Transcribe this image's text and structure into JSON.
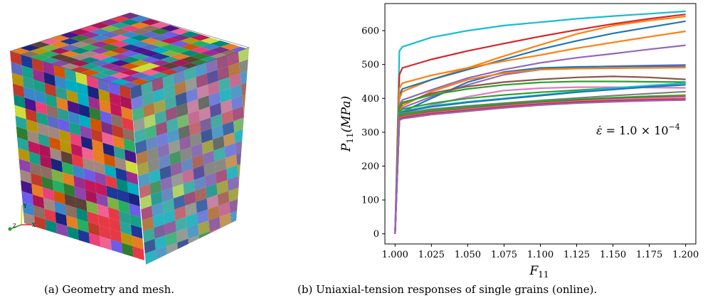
{
  "panel_a": {
    "caption": "(a) Geometry and mesh.",
    "axes_triad": {
      "y": "Y",
      "z": "Z",
      "x": "X"
    }
  },
  "panel_b": {
    "caption": "(b) Uniaxial-tension responses of single grains (online)."
  },
  "chart_data": {
    "type": "line",
    "xlabel": "F11",
    "ylabel": "P11(MPa)",
    "annotation": "ε̇ = 1.0 × 10⁻⁴",
    "xlim": [
      0.993,
      1.207
    ],
    "ylim": [
      -30,
      680
    ],
    "x_ticks": [
      "1.000",
      "1.025",
      "1.050",
      "1.075",
      "1.100",
      "1.125",
      "1.150",
      "1.175",
      "1.200"
    ],
    "y_ticks": [
      "0",
      "100",
      "200",
      "300",
      "400",
      "500",
      "600"
    ],
    "x": [
      1.0,
      1.003,
      1.005,
      1.025,
      1.05,
      1.075,
      1.1,
      1.125,
      1.15,
      1.175,
      1.2
    ],
    "series": [
      {
        "color": "#17becf",
        "values": [
          0,
          540,
          552,
          580,
          600,
          615,
          625,
          635,
          643,
          650,
          657
        ]
      },
      {
        "color": "#d62728",
        "values": [
          0,
          470,
          490,
          515,
          540,
          562,
          583,
          602,
          620,
          635,
          648
        ]
      },
      {
        "color": "#ff7f0e",
        "values": [
          0,
          400,
          420,
          455,
          490,
          525,
          558,
          590,
          615,
          630,
          642
        ]
      },
      {
        "color": "#1f77b4",
        "values": [
          0,
          410,
          428,
          455,
          485,
          515,
          545,
          570,
          592,
          610,
          628
        ]
      },
      {
        "color": "#ff7f0e",
        "values": [
          0,
          430,
          445,
          468,
          490,
          510,
          528,
          548,
          565,
          582,
          598
        ]
      },
      {
        "color": "#9467bd",
        "values": [
          0,
          380,
          395,
          425,
          460,
          485,
          505,
          520,
          532,
          545,
          557
        ]
      },
      {
        "color": "#9467bd",
        "values": [
          0,
          360,
          372,
          405,
          440,
          470,
          485,
          492,
          495,
          497,
          499
        ]
      },
      {
        "color": "#1f77b4",
        "values": [
          0,
          350,
          360,
          400,
          448,
          478,
          490,
          493,
          494,
          495,
          496
        ]
      },
      {
        "color": "#ff7f0e",
        "values": [
          0,
          365,
          378,
          420,
          455,
          475,
          485,
          488,
          489,
          490,
          491
        ]
      },
      {
        "color": "#8c564b",
        "values": [
          0,
          370,
          385,
          415,
          435,
          448,
          456,
          462,
          465,
          462,
          456
        ]
      },
      {
        "color": "#2ca02c",
        "values": [
          0,
          375,
          388,
          410,
          428,
          440,
          447,
          450,
          450,
          449,
          448
        ]
      },
      {
        "color": "#e377c2",
        "values": [
          0,
          345,
          355,
          380,
          405,
          423,
          430,
          433,
          433,
          432,
          431
        ]
      },
      {
        "color": "#2ca02c",
        "values": [
          0,
          360,
          368,
          385,
          400,
          410,
          418,
          424,
          430,
          437,
          445
        ]
      },
      {
        "color": "#17becf",
        "values": [
          0,
          355,
          362,
          378,
          390,
          400,
          410,
          420,
          430,
          438,
          445
        ]
      },
      {
        "color": "#1f77b4",
        "values": [
          0,
          352,
          360,
          375,
          388,
          398,
          408,
          418,
          426,
          434,
          440
        ]
      },
      {
        "color": "#7f7f7f",
        "values": [
          0,
          350,
          356,
          368,
          378,
          386,
          394,
          401,
          408,
          414,
          420
        ]
      },
      {
        "color": "#bcbd22",
        "values": [
          0,
          345,
          350,
          362,
          372,
          382,
          390,
          396,
          401,
          406,
          410
        ]
      },
      {
        "color": "#2ca02c",
        "values": [
          0,
          348,
          353,
          365,
          375,
          384,
          391,
          397,
          402,
          406,
          408
        ]
      },
      {
        "color": "#8c564b",
        "values": [
          0,
          342,
          348,
          360,
          370,
          380,
          387,
          393,
          398,
          402,
          405
        ]
      },
      {
        "color": "#e377c2",
        "values": [
          0,
          340,
          345,
          357,
          367,
          377,
          385,
          391,
          396,
          400,
          403
        ]
      },
      {
        "color": "#d62728",
        "values": [
          0,
          338,
          343,
          355,
          365,
          375,
          383,
          389,
          393,
          396,
          398
        ]
      },
      {
        "color": "#9467bd",
        "values": [
          0,
          335,
          340,
          352,
          362,
          372,
          380,
          386,
          390,
          393,
          395
        ]
      }
    ]
  }
}
